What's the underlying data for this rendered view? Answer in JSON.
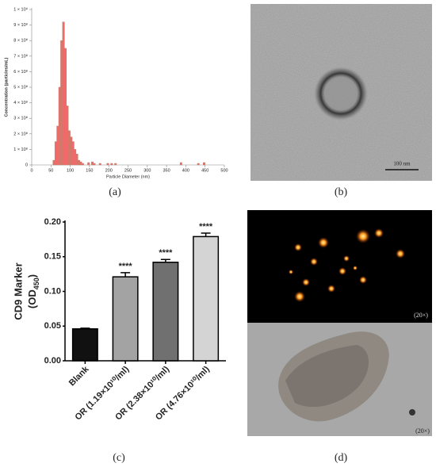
{
  "figure": {
    "panel_labels": [
      "(a)",
      "(b)",
      "(c)",
      "(d)"
    ],
    "b_scale_bar": "100 nm",
    "d_magnification": [
      "(20×)",
      "(20×)"
    ]
  },
  "chart_data": [
    {
      "type": "bar",
      "xlabel": "Particle Diameter (nm)",
      "ylabel": "Concentration (particles/mL)",
      "color": "#f06a6a",
      "edge": "#b9826a",
      "x": [
        57.5,
        62.5,
        67.5,
        72.5,
        77.5,
        82.5,
        87.5,
        92.5,
        97.5,
        102.5,
        107.5,
        112.5,
        117.5,
        122.5,
        127.5,
        132.5,
        147.5,
        157.5,
        162.5,
        177.5,
        197.5,
        207.5,
        217.5,
        387.5,
        432.5,
        447.5
      ],
      "values": [
        30000000,
        150000000,
        250000000,
        500000000,
        800000000,
        920000000,
        750000000,
        380000000,
        220000000,
        180000000,
        150000000,
        100000000,
        70000000,
        30000000,
        20000000,
        10000000,
        15000000,
        20000000,
        10000000,
        10000000,
        10000000,
        10000000,
        10000000,
        15000000,
        10000000,
        15000000
      ],
      "xlim": [
        0,
        500
      ],
      "xticks": [
        0,
        50,
        100,
        150,
        200,
        250,
        300,
        350,
        400,
        450,
        500
      ],
      "ylim": [
        0,
        1000000000
      ],
      "yticks": [
        0,
        {
          "value": 100000000,
          "label": "1 × 10⁸"
        },
        {
          "value": 200000000,
          "label": "2 × 10⁸"
        },
        {
          "value": 300000000,
          "label": "3 × 10⁸"
        },
        {
          "value": 400000000,
          "label": "4 × 10⁸"
        },
        {
          "value": 500000000,
          "label": "5 × 10⁸"
        },
        {
          "value": 600000000,
          "label": "6 × 10⁸"
        },
        {
          "value": 700000000,
          "label": "7 × 10⁸"
        },
        {
          "value": 800000000,
          "label": "8 × 10⁸"
        },
        {
          "value": 900000000,
          "label": "9 × 10⁸"
        },
        {
          "value": 1000000000,
          "label": "1 × 10⁹"
        }
      ]
    },
    {
      "type": "bar",
      "ylabel": [
        "CD9 Marker",
        "(OD",
        "450",
        ")"
      ],
      "categories": [
        "Blank",
        "OR (1.19×10¹⁰/ml)",
        "OR (2.38×10¹⁰/ml)",
        "OR (4.76×10¹⁰/ml)"
      ],
      "values": [
        0.046,
        0.121,
        0.142,
        0.179
      ],
      "errors": [
        0.001,
        0.006,
        0.004,
        0.005
      ],
      "annotations": [
        null,
        "****",
        "****",
        "****"
      ],
      "colors": [
        "#111111",
        "#a3a3a3",
        "#707070",
        "#d4d4d4"
      ],
      "ylim": [
        0,
        0.2
      ],
      "yticks": [
        {
          "value": 0,
          "label": "0.00"
        },
        {
          "value": 0.05,
          "label": "0.05"
        },
        {
          "value": 0.1,
          "label": "0.10"
        },
        {
          "value": 0.15,
          "label": "0.15"
        },
        {
          "value": 0.2,
          "label": "0.20"
        }
      ]
    }
  ]
}
